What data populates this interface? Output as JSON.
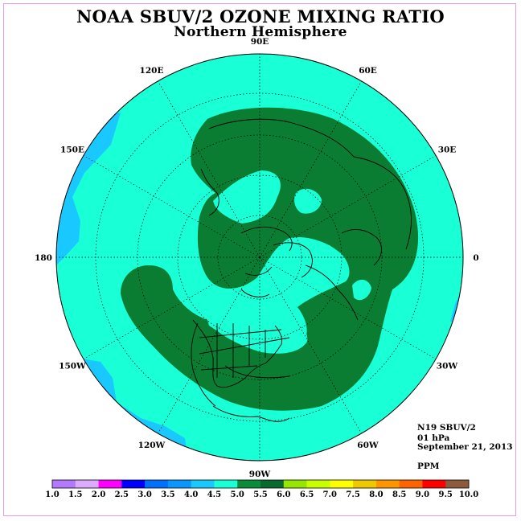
{
  "title": "NOAA SBUV/2 OZONE MIXING RATIO",
  "subtitle": "Northern Hemisphere",
  "map": {
    "projection": "north polar stereographic",
    "longitude_labels": [
      {
        "text": "90E",
        "lon": 90
      },
      {
        "text": "60E",
        "lon": 60
      },
      {
        "text": "30E",
        "lon": 30
      },
      {
        "text": "0",
        "lon": 0
      },
      {
        "text": "30W",
        "lon": -30
      },
      {
        "text": "60W",
        "lon": -60
      },
      {
        "text": "90W",
        "lon": -90
      },
      {
        "text": "120W",
        "lon": -120
      },
      {
        "text": "150W",
        "lon": -150
      },
      {
        "text": "180",
        "lon": 180
      },
      {
        "text": "150E",
        "lon": 150
      },
      {
        "text": "120E",
        "lon": 120
      }
    ],
    "field_colors": {
      "background_band": "#19ffd6",
      "low_band": "#19c8ff",
      "high_band": "#0a7d32",
      "coastline": "#000000",
      "grid": "#000000"
    }
  },
  "info": {
    "satellite": "N19 SBUV/2",
    "level": "01 hPa",
    "date": "September 21, 2013",
    "units": "PPM"
  },
  "colorbar": {
    "labels": [
      "1.0",
      "1.5",
      "2.0",
      "2.5",
      "3.0",
      "3.5",
      "4.0",
      "4.5",
      "5.0",
      "5.5",
      "6.0",
      "6.5",
      "7.0",
      "7.5",
      "8.0",
      "8.5",
      "9.0",
      "9.5",
      "10.0"
    ],
    "colors": [
      "#b478ff",
      "#dcaaff",
      "#ff00ff",
      "#0000ff",
      "#0070ff",
      "#0a96ff",
      "#19c8ff",
      "#19ffd6",
      "#0a8c3c",
      "#086a2e",
      "#96e600",
      "#c8ff00",
      "#ffff00",
      "#f0c800",
      "#ff9600",
      "#ff6400",
      "#ff0000",
      "#8c5a3c"
    ]
  }
}
